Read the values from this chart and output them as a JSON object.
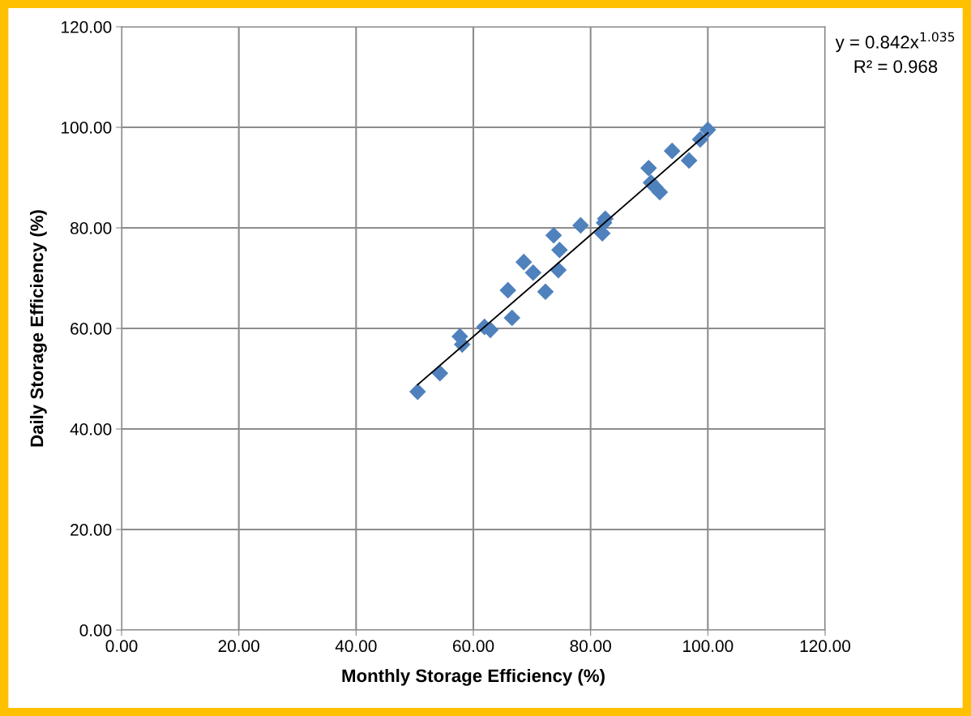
{
  "chart_data": {
    "type": "scatter",
    "xlabel": "Monthly Storage Efficiency (%)",
    "ylabel": "Daily Storage Efficiency (%)",
    "xlim": [
      0,
      120
    ],
    "ylim": [
      0,
      120
    ],
    "xticks": [
      {
        "value": 0,
        "label": "0.00"
      },
      {
        "value": 20,
        "label": "20.00"
      },
      {
        "value": 40,
        "label": "40.00"
      },
      {
        "value": 60,
        "label": "60.00"
      },
      {
        "value": 80,
        "label": "80.00"
      },
      {
        "value": 100,
        "label": "100.00"
      },
      {
        "value": 120,
        "label": "120.00"
      }
    ],
    "yticks": [
      {
        "value": 0,
        "label": "0.00"
      },
      {
        "value": 20,
        "label": "20.00"
      },
      {
        "value": 40,
        "label": "40.00"
      },
      {
        "value": 60,
        "label": "60.00"
      },
      {
        "value": 80,
        "label": "80.00"
      },
      {
        "value": 100,
        "label": "100.00"
      },
      {
        "value": 120,
        "label": "120.00"
      }
    ],
    "grid": true,
    "legend": false,
    "series": [
      {
        "marker": "diamond",
        "color": "#4f81bd",
        "x": [
          50.5,
          54.3,
          57.7,
          58.1,
          61.9,
          62.9,
          66.6,
          65.9,
          68.6,
          70.2,
          72.3,
          73.7,
          74.7,
          74.5,
          78.3,
          82.0,
          82.3,
          82.5,
          89.9,
          90.3,
          91.0,
          91.8,
          93.9,
          96.8,
          98.7,
          100.0
        ],
        "values": [
          47.4,
          51.1,
          58.4,
          56.8,
          60.3,
          59.7,
          62.1,
          67.6,
          73.2,
          71.1,
          67.3,
          78.5,
          75.6,
          71.6,
          80.5,
          78.9,
          81.0,
          81.8,
          91.9,
          89.0,
          88.1,
          87.1,
          95.3,
          93.4,
          97.6,
          99.5
        ]
      },
      {
        "type": "line",
        "marker": "none",
        "color": "#000000",
        "x": [
          50.5,
          75,
          100
        ],
        "values": [
          48.8,
          73.5,
          98.9
        ]
      }
    ],
    "annotations": [
      "y = 0.842x$^{1.035}$",
      "R² = 0.968"
    ]
  }
}
